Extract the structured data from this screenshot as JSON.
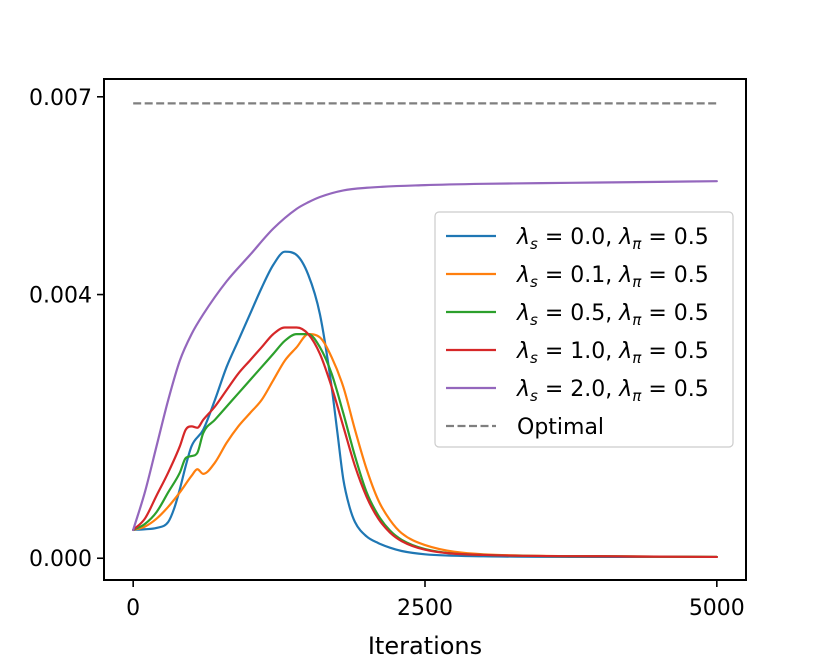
{
  "chart_data": {
    "type": "line",
    "title": "",
    "xlabel": "Iterations",
    "ylabel": "",
    "xlim": [
      -250,
      5250
    ],
    "ylim": [
      -0.00033,
      0.00727
    ],
    "xticks": [
      {
        "value": 0,
        "label": "0"
      },
      {
        "value": 2500,
        "label": "2500"
      },
      {
        "value": 5000,
        "label": "5000"
      }
    ],
    "yticks": [
      {
        "value": 0.0,
        "label": "0.000"
      },
      {
        "value": 0.004,
        "label": "0.004"
      },
      {
        "value": 0.007,
        "label": "0.007"
      }
    ],
    "legend_position": "center-right",
    "series": [
      {
        "name": "λs = 0.0, λπ = 0.5",
        "legend": {
          "lambda": "λ",
          "sub1": "s",
          "mid": " = 0.0, ",
          "sub2": "π",
          "tail": " = 0.5"
        },
        "color": "#1f77b4",
        "style": "solid",
        "x": [
          0,
          100,
          200,
          300,
          350,
          400,
          450,
          500,
          600,
          700,
          800,
          900,
          1000,
          1100,
          1200,
          1300,
          1400,
          1500,
          1600,
          1700,
          1750,
          1800,
          1850,
          1900,
          2000,
          2100,
          2200,
          2300,
          2500,
          3000,
          4000,
          5000
        ],
        "y": [
          0.00043,
          0.00044,
          0.00046,
          0.00055,
          0.00075,
          0.00105,
          0.0014,
          0.0017,
          0.00195,
          0.0024,
          0.0029,
          0.0033,
          0.0037,
          0.0041,
          0.00445,
          0.00465,
          0.0046,
          0.0043,
          0.0037,
          0.0026,
          0.0019,
          0.0012,
          0.0008,
          0.00055,
          0.00033,
          0.00023,
          0.00016,
          0.00011,
          6e-05,
          3e-05,
          2e-05,
          2e-05
        ]
      },
      {
        "name": "λs = 0.1, λπ = 0.5",
        "legend": {
          "lambda": "λ",
          "sub1": "s",
          "mid": " = 0.1, ",
          "sub2": "π",
          "tail": " = 0.5"
        },
        "color": "#ff7f0e",
        "style": "solid",
        "x": [
          0,
          100,
          200,
          300,
          400,
          500,
          550,
          600,
          700,
          800,
          900,
          1000,
          1100,
          1200,
          1300,
          1400,
          1500,
          1600,
          1700,
          1800,
          1900,
          2000,
          2100,
          2200,
          2300,
          2500,
          3000,
          4000,
          5000
        ],
        "y": [
          0.00043,
          0.00048,
          0.0006,
          0.00078,
          0.001,
          0.00125,
          0.00135,
          0.00128,
          0.00145,
          0.00175,
          0.002,
          0.0022,
          0.0024,
          0.0027,
          0.003,
          0.0032,
          0.0034,
          0.00335,
          0.00305,
          0.0026,
          0.00195,
          0.00135,
          0.00088,
          0.00058,
          0.00038,
          0.0002,
          6e-05,
          3e-05,
          2e-05
        ]
      },
      {
        "name": "λs = 0.5, λπ = 0.5",
        "legend": {
          "lambda": "λ",
          "sub1": "s",
          "mid": " = 0.5, ",
          "sub2": "π",
          "tail": " = 0.5"
        },
        "color": "#2ca02c",
        "style": "solid",
        "x": [
          0,
          100,
          200,
          300,
          400,
          450,
          500,
          550,
          600,
          700,
          800,
          900,
          1000,
          1100,
          1200,
          1300,
          1400,
          1500,
          1600,
          1700,
          1800,
          1900,
          2000,
          2100,
          2200,
          2300,
          2500,
          3000,
          4000,
          5000
        ],
        "y": [
          0.00043,
          0.00052,
          0.0007,
          0.001,
          0.0013,
          0.00152,
          0.00155,
          0.0016,
          0.0019,
          0.0021,
          0.0023,
          0.0025,
          0.0027,
          0.0029,
          0.0031,
          0.0033,
          0.0034,
          0.0034,
          0.0032,
          0.0028,
          0.0022,
          0.00155,
          0.001,
          0.00065,
          0.00042,
          0.00028,
          0.00014,
          5e-05,
          3e-05,
          2e-05
        ]
      },
      {
        "name": "λs = 1.0, λπ = 0.5",
        "legend": {
          "lambda": "λ",
          "sub1": "s",
          "mid": " = 1.0, ",
          "sub2": "π",
          "tail": " = 0.5"
        },
        "color": "#d62728",
        "style": "solid",
        "x": [
          0,
          100,
          200,
          300,
          400,
          450,
          500,
          550,
          600,
          700,
          800,
          900,
          1000,
          1100,
          1200,
          1300,
          1400,
          1500,
          1600,
          1700,
          1800,
          1900,
          2000,
          2100,
          2200,
          2300,
          2500,
          3000,
          4000,
          5000
        ],
        "y": [
          0.00043,
          0.0006,
          0.00095,
          0.0013,
          0.0017,
          0.00195,
          0.002,
          0.00198,
          0.0021,
          0.0023,
          0.00255,
          0.0028,
          0.003,
          0.0032,
          0.0034,
          0.0035,
          0.0035,
          0.0034,
          0.0031,
          0.0026,
          0.002,
          0.0014,
          0.00093,
          0.0006,
          0.00039,
          0.00026,
          0.00013,
          5e-05,
          3e-05,
          2e-05
        ]
      },
      {
        "name": "λs = 2.0, λπ = 0.5",
        "legend": {
          "lambda": "λ",
          "sub1": "s",
          "mid": " = 2.0, ",
          "sub2": "π",
          "tail": " = 0.5"
        },
        "color": "#9467bd",
        "style": "solid",
        "x": [
          0,
          100,
          200,
          300,
          400,
          500,
          600,
          800,
          1000,
          1200,
          1400,
          1500,
          1600,
          1800,
          2000,
          2500,
          3000,
          3500,
          4000,
          4500,
          5000
        ],
        "y": [
          0.00043,
          0.001,
          0.0017,
          0.0024,
          0.003,
          0.0034,
          0.0037,
          0.0042,
          0.0046,
          0.005,
          0.0053,
          0.0054,
          0.00548,
          0.00558,
          0.00562,
          0.00566,
          0.00568,
          0.00569,
          0.0057,
          0.00571,
          0.00572
        ]
      },
      {
        "name": "Optimal",
        "legend": {
          "lambda": "Optimal",
          "sub1": "",
          "mid": "",
          "sub2": "",
          "tail": ""
        },
        "color": "#7f7f7f",
        "style": "dashed",
        "x": [
          0,
          5000
        ],
        "y": [
          0.0069,
          0.0069
        ]
      }
    ]
  }
}
